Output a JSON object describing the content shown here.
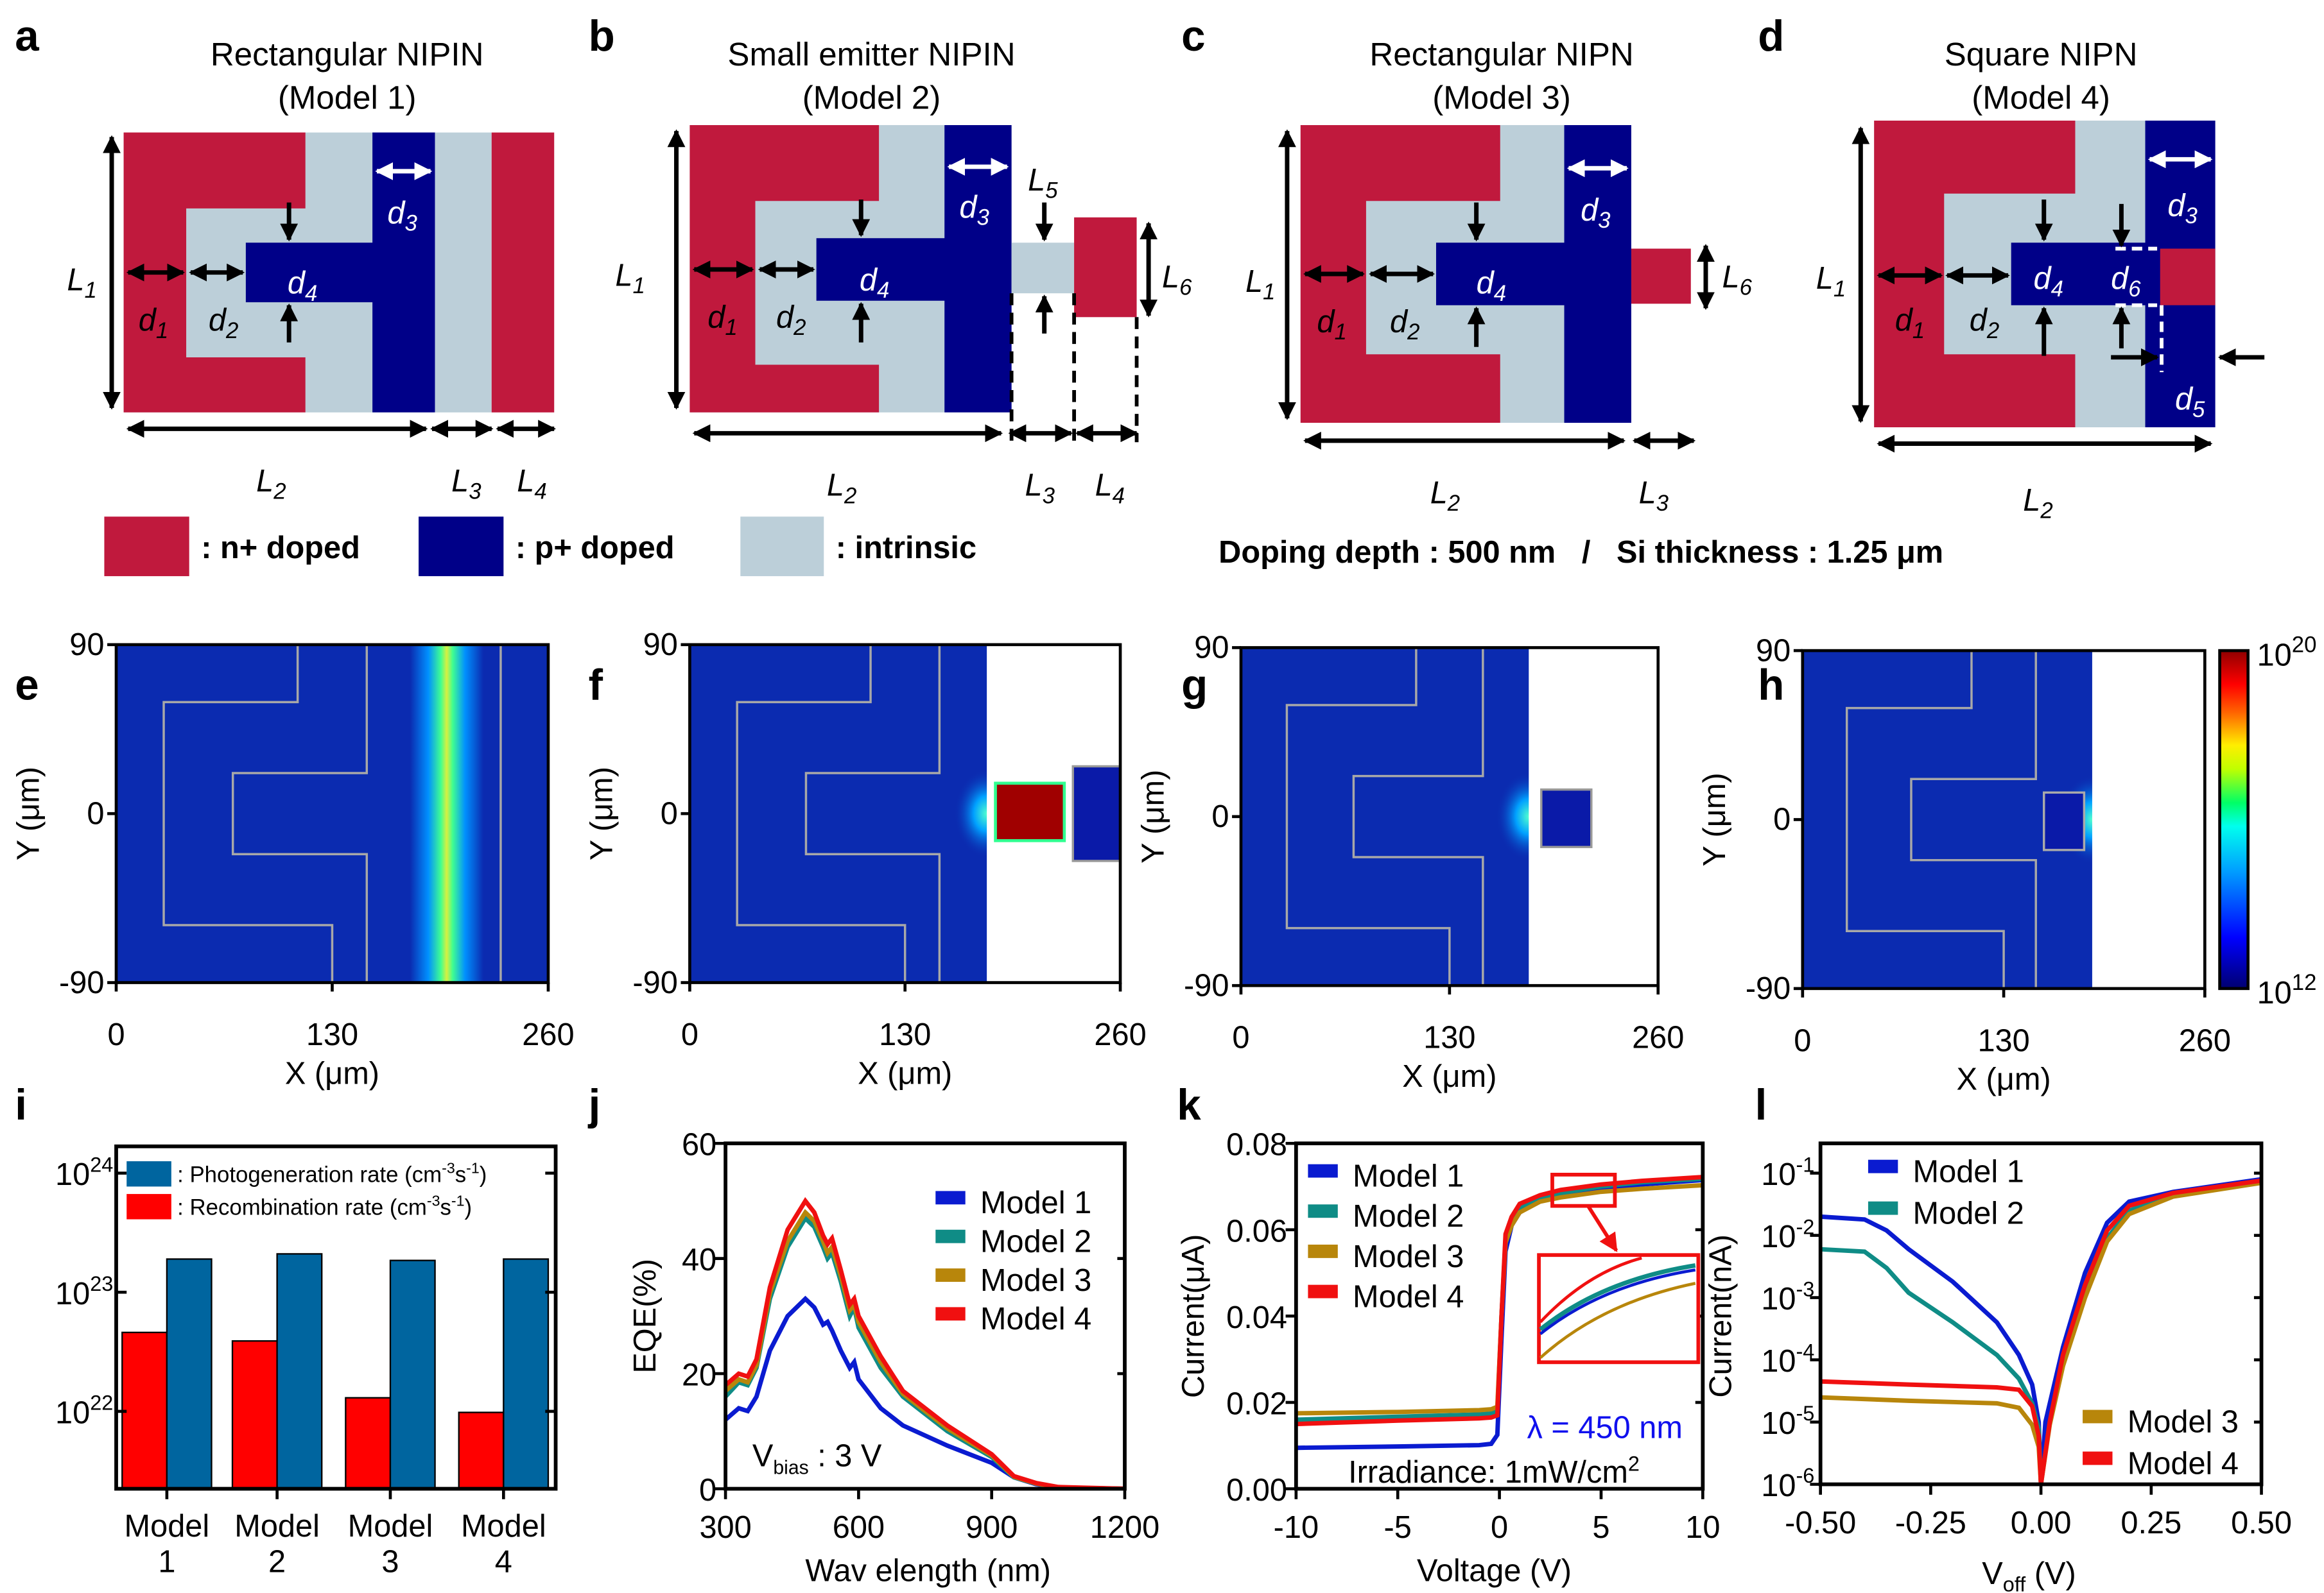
{
  "colors": {
    "n_plus": "#c0193d",
    "p_plus": "#000088",
    "intrinsic": "#bccfd9",
    "heat_bg": "#0b2bb0"
  },
  "panel_labels": [
    "a",
    "b",
    "c",
    "d",
    "e",
    "f",
    "g",
    "h",
    "i",
    "j",
    "k",
    "l"
  ],
  "diagrams": [
    {
      "title": "Rectangular NIPIN",
      "subtitle": "(Model 1)",
      "dims": [
        "L1",
        "d1",
        "d2",
        "d3",
        "d4",
        "L2",
        "L3",
        "L4"
      ]
    },
    {
      "title": "Small emitter NIPIN",
      "subtitle": "(Model 2)",
      "dims": [
        "L1",
        "d1",
        "d2",
        "d3",
        "d4",
        "L5",
        "L6",
        "L2",
        "L3",
        "L4"
      ]
    },
    {
      "title": "Rectangular NIPN",
      "subtitle": "(Model 3)",
      "dims": [
        "L1",
        "d1",
        "d2",
        "d3",
        "d4",
        "L6",
        "L2",
        "L3"
      ]
    },
    {
      "title": "Square NIPN",
      "subtitle": "(Model 4)",
      "dims": [
        "L1",
        "d1",
        "d2",
        "d3",
        "d4",
        "d6",
        "d5",
        "L2"
      ]
    }
  ],
  "legend": {
    "n_plus": ": n+ doped",
    "p_plus": ": p+ doped",
    "intrinsic": ": intrinsic"
  },
  "doping_note": "Doping depth : 500 nm   /   Si thickness : 1.25 μm",
  "heatmaps": {
    "y_ticks": [
      "90",
      "0",
      "-90"
    ],
    "x_ticks": [
      "0",
      "130",
      "260"
    ],
    "xlabel": "X (μm)",
    "ylabel": "Y (μm)",
    "colorbar": {
      "max_base": "10",
      "max_exp": "20",
      "min_base": "10",
      "min_exp": "12"
    }
  },
  "chart_data": [
    {
      "id": "i",
      "type": "bar",
      "yscale": "log",
      "ylim": [
        2.2e+21,
        1.7e+24
      ],
      "categories": [
        [
          "Model",
          "1"
        ],
        [
          "Model",
          "2"
        ],
        [
          "Model",
          "3"
        ],
        [
          "Model",
          "4"
        ]
      ],
      "y_ticks": [
        {
          "base": "10",
          "exp": "24",
          "value": 1e+24
        },
        {
          "base": "10",
          "exp": "23",
          "value": 1e+23
        },
        {
          "base": "10",
          "exp": "22",
          "value": 1e+22
        }
      ],
      "series": [
        {
          "name": "Recombination rate",
          "legend_main": ": Recombination rate (cm",
          "legend_exp1": "-3",
          "legend_mid": "s",
          "legend_exp2": "-1",
          "legend_end": ")",
          "color": "#ff0000",
          "values": [
            4.6e+22,
            3.9e+22,
            1.3e+22,
            9.8e+21
          ]
        },
        {
          "name": "Photogeneration rate",
          "legend_main": ": Photogeneration rate (cm",
          "legend_exp1": "-3",
          "legend_mid": "s",
          "legend_exp2": "-1",
          "legend_end": ")",
          "color": "#00659f",
          "values": [
            1.9e+23,
            2.1e+23,
            1.85e+23,
            1.9e+23
          ]
        }
      ]
    },
    {
      "id": "j",
      "type": "line",
      "xlabel": "Wav elength (nm)",
      "ylabel": "EQE(%)",
      "xlim": [
        300,
        1200
      ],
      "ylim": [
        0,
        60
      ],
      "x_ticks": [
        "300",
        "600",
        "900",
        "1200"
      ],
      "y_ticks": [
        "0",
        "20",
        "40",
        "60"
      ],
      "annotation": {
        "v": "V",
        "sub": "bias",
        "rest": " : 3 V"
      },
      "series": [
        {
          "name": "Model  1",
          "color": "#0a1bd0",
          "x": [
            300,
            330,
            350,
            370,
            400,
            440,
            480,
            500,
            520,
            530,
            540,
            560,
            580,
            590,
            600,
            650,
            700,
            800,
            900,
            950,
            1000,
            1050,
            1200
          ],
          "y": [
            12,
            14,
            13.5,
            16,
            24,
            30,
            33,
            31.5,
            28.5,
            29,
            27.5,
            24,
            21,
            22,
            19,
            14,
            11,
            7.5,
            4.5,
            2,
            0.8,
            0.2,
            0
          ]
        },
        {
          "name": "Model  2",
          "color": "#0f8c86",
          "x": [
            300,
            330,
            350,
            370,
            400,
            440,
            480,
            500,
            520,
            530,
            540,
            560,
            580,
            590,
            600,
            650,
            700,
            800,
            900,
            950,
            1000,
            1050,
            1200
          ],
          "y": [
            16,
            18.5,
            18,
            21,
            33,
            42,
            47,
            45.5,
            42,
            40,
            41,
            36,
            30,
            31.5,
            28,
            21,
            16,
            10,
            5.5,
            2,
            0.9,
            0.2,
            0
          ]
        },
        {
          "name": "Model  3",
          "color": "#b8860b",
          "x": [
            300,
            330,
            350,
            370,
            400,
            440,
            480,
            500,
            520,
            530,
            540,
            560,
            580,
            590,
            600,
            650,
            700,
            800,
            900,
            950,
            1000,
            1050,
            1200
          ],
          "y": [
            17,
            19,
            18.5,
            21.5,
            34,
            43,
            48,
            46.5,
            43,
            41,
            42,
            37,
            31,
            32,
            29,
            22,
            16.5,
            10.5,
            5.8,
            2.1,
            0.9,
            0.2,
            0
          ]
        },
        {
          "name": "Model  4",
          "color": "#f01010",
          "x": [
            300,
            330,
            350,
            370,
            400,
            440,
            480,
            500,
            520,
            530,
            540,
            560,
            580,
            590,
            600,
            650,
            700,
            800,
            900,
            950,
            1000,
            1050,
            1200
          ],
          "y": [
            18,
            20,
            19.5,
            22.5,
            35,
            45,
            50,
            48,
            44,
            42.5,
            43.5,
            38,
            32,
            33,
            30,
            23,
            17,
            11,
            6,
            2.2,
            1,
            0.3,
            0
          ]
        }
      ]
    },
    {
      "id": "k",
      "type": "line",
      "xlabel": "Voltage (V)",
      "ylabel": "Current(μA)",
      "xlim": [
        -10,
        10
      ],
      "ylim": [
        0,
        0.08
      ],
      "x_ticks": [
        "-10",
        "-5",
        "0",
        "5",
        "10"
      ],
      "y_ticks": [
        "0.00",
        "0.02",
        "0.04",
        "0.06",
        "0.08"
      ],
      "annotations": {
        "wavelength": "λ = 450 nm",
        "irradiance": "Irradiance:  1mW/cm",
        "irradiance_exp": "2"
      },
      "series": [
        {
          "name": "Model  1",
          "color": "#0a1bd0",
          "x": [
            -10,
            -5,
            -1,
            -0.4,
            -0.1,
            0.1,
            0.3,
            0.6,
            1,
            2,
            3,
            5,
            7,
            10
          ],
          "y": [
            0.0095,
            0.0098,
            0.0101,
            0.0104,
            0.0125,
            0.035,
            0.055,
            0.061,
            0.064,
            0.067,
            0.068,
            0.0695,
            0.0705,
            0.0715
          ]
        },
        {
          "name": "Model  2",
          "color": "#0f8c86",
          "x": [
            -10,
            -5,
            -1,
            -0.4,
            -0.1,
            0.1,
            0.3,
            0.6,
            1,
            2,
            3,
            5,
            7,
            10
          ],
          "y": [
            0.016,
            0.0167,
            0.0172,
            0.0174,
            0.018,
            0.04,
            0.058,
            0.062,
            0.065,
            0.067,
            0.0685,
            0.07,
            0.071,
            0.0718
          ]
        },
        {
          "name": "Model  3",
          "color": "#b8860b",
          "x": [
            -10,
            -5,
            -1,
            -0.4,
            -0.1,
            0.1,
            0.3,
            0.6,
            1,
            2,
            3,
            5,
            7,
            10
          ],
          "y": [
            0.0175,
            0.0178,
            0.0182,
            0.0184,
            0.019,
            0.04,
            0.057,
            0.061,
            0.064,
            0.0665,
            0.0675,
            0.0688,
            0.0695,
            0.0703
          ]
        },
        {
          "name": "Model  4",
          "color": "#f01010",
          "x": [
            -10,
            -5,
            -1,
            -0.4,
            -0.1,
            0.1,
            0.3,
            0.6,
            1,
            2,
            3,
            5,
            7,
            10
          ],
          "y": [
            0.015,
            0.0158,
            0.0163,
            0.0165,
            0.017,
            0.04,
            0.059,
            0.063,
            0.066,
            0.068,
            0.0692,
            0.0705,
            0.0713,
            0.0722
          ]
        }
      ]
    },
    {
      "id": "l",
      "type": "line",
      "yscale": "log",
      "xlabel_main": "V",
      "xlabel_sub": "off",
      "xlabel_end": " (V)",
      "ylabel": "Current(nA)",
      "xlim": [
        -0.5,
        0.5
      ],
      "ylim": [
        1e-06,
        0.33
      ],
      "x_ticks": [
        "-0.50",
        "-0.25",
        "0.00",
        "0.25",
        "0.50"
      ],
      "y_ticks": [
        {
          "base": "10",
          "exp": "-1"
        },
        {
          "base": "10",
          "exp": "-2"
        },
        {
          "base": "10",
          "exp": "-3"
        },
        {
          "base": "10",
          "exp": "-4"
        },
        {
          "base": "10",
          "exp": "-5"
        },
        {
          "base": "10",
          "exp": "-6"
        }
      ],
      "series": [
        {
          "name": "Model  1",
          "color": "#0a1bd0",
          "x": [
            -0.5,
            -0.4,
            -0.35,
            -0.3,
            -0.2,
            -0.1,
            -0.05,
            -0.02,
            -0.005,
            0,
            0.01,
            0.05,
            0.1,
            0.15,
            0.2,
            0.3,
            0.5
          ],
          "y": [
            0.02,
            0.018,
            0.012,
            0.006,
            0.0018,
            0.0004,
            0.00012,
            4e-05,
            1e-05,
            1e-06,
            1e-05,
            0.00016,
            0.0025,
            0.016,
            0.035,
            0.05,
            0.08
          ]
        },
        {
          "name": "Model  2",
          "color": "#0f8c86",
          "x": [
            -0.5,
            -0.4,
            -0.35,
            -0.3,
            -0.2,
            -0.1,
            -0.05,
            -0.02,
            -0.005,
            0,
            0.02,
            0.05,
            0.1,
            0.15,
            0.2,
            0.3,
            0.5
          ],
          "y": [
            0.006,
            0.0055,
            0.003,
            0.0012,
            0.0004,
            0.00012,
            5e-05,
            2e-05,
            8e-06,
            1e-06,
            1e-05,
            0.0001,
            0.0012,
            0.009,
            0.025,
            0.045,
            0.072
          ]
        },
        {
          "name": "Model  3",
          "color": "#b8860b",
          "x": [
            -0.5,
            -0.3,
            -0.1,
            -0.05,
            -0.02,
            -0.005,
            0,
            0.02,
            0.05,
            0.1,
            0.15,
            0.2,
            0.3,
            0.5
          ],
          "y": [
            2.5e-05,
            2.2e-05,
            2e-05,
            1.7e-05,
            9e-06,
            4e-06,
            1e-06,
            9e-06,
            8e-05,
            0.001,
            0.008,
            0.022,
            0.042,
            0.07
          ]
        },
        {
          "name": "Model  4",
          "color": "#f01010",
          "x": [
            -0.5,
            -0.3,
            -0.1,
            -0.05,
            -0.02,
            -0.005,
            0,
            0.02,
            0.05,
            0.1,
            0.15,
            0.2,
            0.3,
            0.5
          ],
          "y": [
            4.5e-05,
            4e-05,
            3.6e-05,
            3.3e-05,
            1.8e-05,
            6e-06,
            1e-06,
            1e-05,
            0.00012,
            0.0016,
            0.012,
            0.03,
            0.048,
            0.076
          ]
        }
      ]
    }
  ]
}
